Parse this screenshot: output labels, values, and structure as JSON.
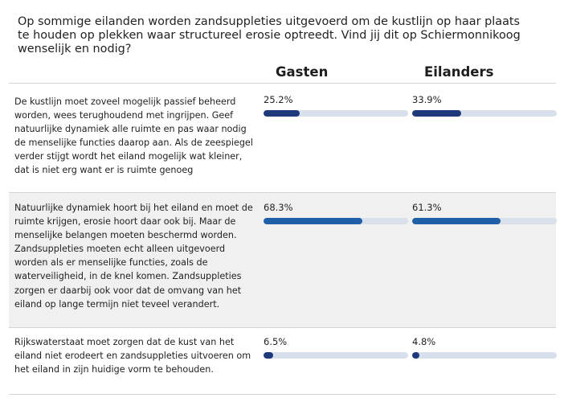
{
  "question": "Op sommige eilanden worden zandsuppleties uitgevoerd om de kustlijn op haar plaats te houden op plekken waar structureel erosie optreedt. Vind jij dit op Schiermonnikoog wenselijk en nodig?",
  "columns": [
    "Gasten",
    "Eilanders"
  ],
  "rows": [
    {
      "statement": "De kustlijn moet zoveel mogelijk passief beheerd worden, wees terughoudend met ingrijpen. Geef natuurlijke dynamiek alle ruimte en pas waar nodig de menselijke functies daarop aan. Als de zeespiegel verder stijgt wordt het eiland mogelijk wat kleiner, dat is niet erg want er is ruimte genoeg",
      "gasten_label": "25.2%",
      "eilanders_label": "33.9%"
    },
    {
      "statement": "Natuurlijke dynamiek hoort bij het eiland en moet de ruimte krijgen, erosie hoort daar ook bij. Maar de menselijke belangen moeten beschermd worden. Zandsuppleties moeten echt alleen uitgevoerd worden als er menselijke functies, zoals de waterveiligheid, in de knel komen. Zandsuppleties zorgen er daarbij ook voor dat de omvang van het eiland op lange termijn niet teveel verandert.",
      "gasten_label": "68.3%",
      "eilanders_label": "61.3%"
    },
    {
      "statement": "Rijkswaterstaat moet zorgen dat de kust van het eiland niet erodeert en zandsuppleties uitvoeren om het eiland in zijn huidige vorm te behouden.",
      "gasten_label": "6.5%",
      "eilanders_label": "4.8%"
    }
  ],
  "colors": {
    "track": "#d8e0eb",
    "fill_dark": "#1f3a7a",
    "fill_mid": "#1f5fa8"
  },
  "chart_data": {
    "type": "bar",
    "categories": [
      "De kustlijn moet zoveel mogelijk passief beheerd worden, wees terughoudend met ingrijpen. Geef natuurlijke dynamiek alle ruimte en pas waar nodig de menselijke functies daarop aan. Als de zeespiegel verder stijgt wordt het eiland mogelijk wat kleiner, dat is niet erg want er is ruimte genoeg",
      "Natuurlijke dynamiek hoort bij het eiland en moet de ruimte krijgen, erosie hoort daar ook bij. Maar de menselijke belangen moeten beschermd worden. Zandsuppleties moeten echt alleen uitgevoerd worden als er menselijke functies, zoals de waterveiligheid, in de knel komen. Zandsuppleties zorgen er daarbij ook voor dat de omvang van het eiland op lange termijn niet teveel verandert.",
      "Rijkswaterstaat moet zorgen dat de kust van het eiland niet erodeert en zandsuppleties uitvoeren om het eiland in zijn huidige vorm te behouden."
    ],
    "series": [
      {
        "name": "Gasten",
        "values": [
          25.2,
          68.3,
          6.5
        ]
      },
      {
        "name": "Eilanders",
        "values": [
          33.9,
          61.3,
          4.8
        ]
      }
    ],
    "ylim": [
      0,
      100
    ],
    "title": "Op sommige eilanden worden zandsuppleties uitgevoerd om de kustlijn op haar plaats te houden op plekken waar structureel erosie optreedt. Vind jij dit op Schiermonnikoog wenselijk en nodig?"
  }
}
